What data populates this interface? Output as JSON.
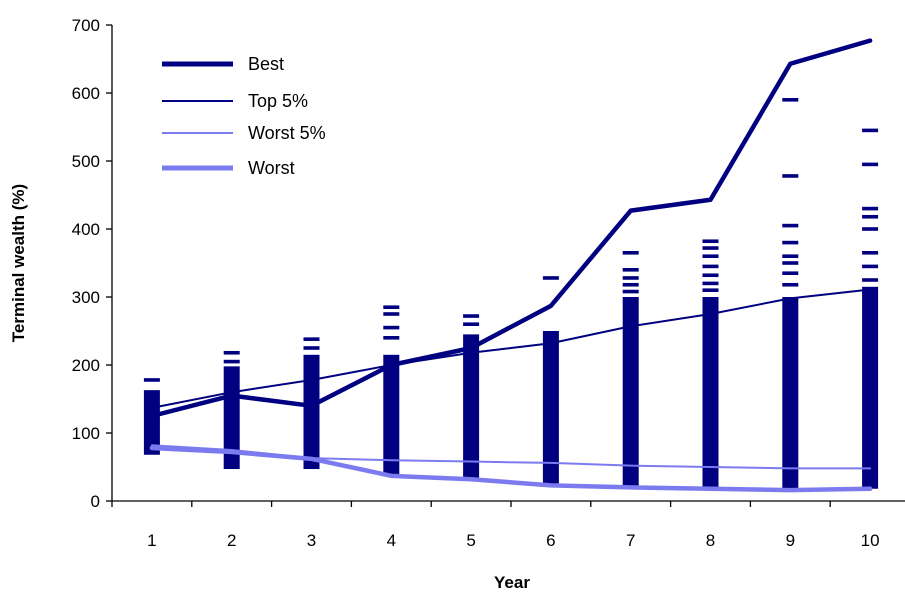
{
  "chart_data": {
    "type": "line",
    "xlabel": "Year",
    "ylabel": "Terminal wealth (%)",
    "categories": [
      "1",
      "2",
      "3",
      "4",
      "5",
      "6",
      "7",
      "8",
      "9",
      "10"
    ],
    "ylim": [
      0,
      700
    ],
    "yticks": [
      "0",
      "100",
      "200",
      "300",
      "400",
      "500",
      "600",
      "700"
    ],
    "grid": false,
    "legend_position": "top-left",
    "series": [
      {
        "name": "Best",
        "color": "#000080",
        "weight": "thick",
        "values": [
          125,
          155,
          140,
          200,
          225,
          287,
          427,
          443,
          643,
          677
        ]
      },
      {
        "name": "Top 5%",
        "color": "#000080",
        "weight": "thin",
        "values": [
          137,
          160,
          178,
          200,
          218,
          232,
          257,
          275,
          298,
          311
        ]
      },
      {
        "name": "Worst 5%",
        "color": "#7b7bef",
        "weight": "thin",
        "values": [
          82,
          75,
          63,
          60,
          58,
          56,
          52,
          50,
          48,
          48
        ]
      },
      {
        "name": "Worst",
        "color": "#7b7bef",
        "weight": "thick",
        "values": [
          78,
          72,
          62,
          37,
          32,
          23,
          20,
          18,
          16,
          18
        ]
      }
    ],
    "distribution_marks": {
      "color": "#000080",
      "ranges": [
        [
          68,
          163
        ],
        [
          47,
          198
        ],
        [
          47,
          215
        ],
        [
          37,
          215
        ],
        [
          32,
          245
        ],
        [
          23,
          250
        ],
        [
          20,
          300
        ],
        [
          18,
          300
        ],
        [
          16,
          300
        ],
        [
          18,
          315
        ]
      ],
      "outliers": [
        [
          178
        ],
        [
          205,
          218
        ],
        [
          225,
          238
        ],
        [
          240,
          255,
          275,
          285
        ],
        [
          260,
          272
        ],
        [
          328
        ],
        [
          308,
          318,
          328,
          340,
          365
        ],
        [
          310,
          320,
          332,
          345,
          360,
          372,
          382
        ],
        [
          318,
          335,
          350,
          360,
          380,
          405,
          478,
          590
        ],
        [
          325,
          345,
          365,
          400,
          418,
          430,
          495,
          545
        ]
      ]
    }
  }
}
